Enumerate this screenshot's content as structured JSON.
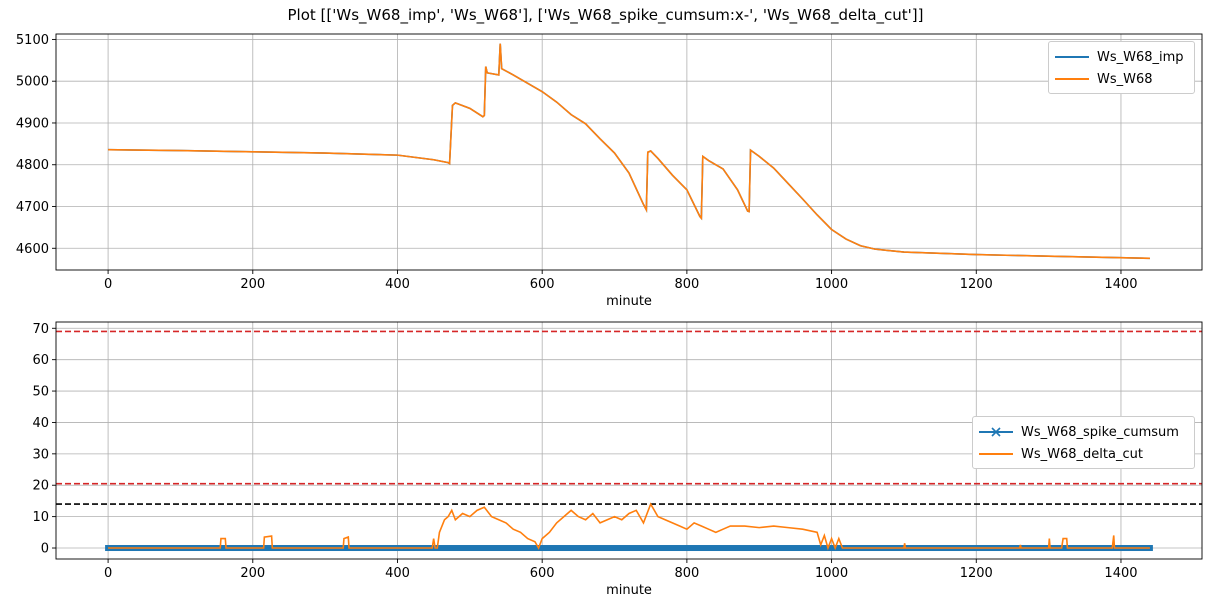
{
  "figure": {
    "title": "Plot [['Ws_W68_imp', 'Ws_W68'], ['Ws_W68_spike_cumsum:x-', 'Ws_W68_delta_cut']]"
  },
  "colors": {
    "blue": "#1f77b4",
    "orange": "#ff7f0e",
    "red_dashed": "#d62728",
    "black_dashed": "#000000",
    "grid": "#b0b0b0"
  },
  "chart_data": [
    {
      "type": "line",
      "xlabel": "minute",
      "ylabel": "",
      "xlim": [
        -72,
        1512
      ],
      "ylim": [
        4548,
        5113
      ],
      "xticks": [
        0,
        200,
        400,
        600,
        800,
        1000,
        1200,
        1400
      ],
      "yticks": [
        4600,
        4700,
        4800,
        4900,
        5000,
        5100
      ],
      "grid": true,
      "legend": "top-right",
      "series": [
        {
          "name": "Ws_W68_imp",
          "color": "blue",
          "style": "solid",
          "points": [
            [
              0,
              4836
            ],
            [
              100,
              4834
            ],
            [
              200,
              4831
            ],
            [
              300,
              4828
            ],
            [
              400,
              4823
            ],
            [
              450,
              4812
            ],
            [
              470,
              4805
            ],
            [
              472,
              4803
            ],
            [
              476,
              4942
            ],
            [
              480,
              4948
            ],
            [
              500,
              4935
            ],
            [
              518,
              4915
            ],
            [
              520,
              4918
            ],
            [
              522,
              5035
            ],
            [
              524,
              5020
            ],
            [
              540,
              5015
            ],
            [
              542,
              5090
            ],
            [
              544,
              5030
            ],
            [
              560,
              5015
            ],
            [
              580,
              4995
            ],
            [
              600,
              4975
            ],
            [
              620,
              4950
            ],
            [
              640,
              4920
            ],
            [
              660,
              4898
            ],
            [
              680,
              4862
            ],
            [
              700,
              4828
            ],
            [
              720,
              4780
            ],
            [
              740,
              4705
            ],
            [
              744,
              4692
            ],
            [
              746,
              4830
            ],
            [
              750,
              4833
            ],
            [
              760,
              4815
            ],
            [
              780,
              4775
            ],
            [
              800,
              4740
            ],
            [
              818,
              4676
            ],
            [
              820,
              4672
            ],
            [
              822,
              4820
            ],
            [
              830,
              4810
            ],
            [
              850,
              4790
            ],
            [
              870,
              4740
            ],
            [
              884,
              4689
            ],
            [
              886,
              4688
            ],
            [
              888,
              4835
            ],
            [
              900,
              4820
            ],
            [
              920,
              4792
            ],
            [
              940,
              4755
            ],
            [
              960,
              4718
            ],
            [
              980,
              4680
            ],
            [
              1000,
              4645
            ],
            [
              1020,
              4622
            ],
            [
              1040,
              4606
            ],
            [
              1060,
              4598
            ],
            [
              1100,
              4591
            ],
            [
              1200,
              4585
            ],
            [
              1300,
              4581
            ],
            [
              1440,
              4576
            ]
          ]
        },
        {
          "name": "Ws_W68",
          "color": "orange",
          "style": "solid",
          "points": [
            [
              0,
              4836
            ],
            [
              100,
              4834
            ],
            [
              200,
              4831
            ],
            [
              300,
              4828
            ],
            [
              400,
              4823
            ],
            [
              450,
              4812
            ],
            [
              470,
              4805
            ],
            [
              472,
              4803
            ],
            [
              476,
              4942
            ],
            [
              480,
              4948
            ],
            [
              500,
              4935
            ],
            [
              518,
              4915
            ],
            [
              520,
              4918
            ],
            [
              522,
              5035
            ],
            [
              524,
              5020
            ],
            [
              540,
              5015
            ],
            [
              542,
              5090
            ],
            [
              544,
              5030
            ],
            [
              560,
              5015
            ],
            [
              580,
              4995
            ],
            [
              600,
              4975
            ],
            [
              620,
              4950
            ],
            [
              640,
              4920
            ],
            [
              660,
              4898
            ],
            [
              680,
              4862
            ],
            [
              700,
              4828
            ],
            [
              720,
              4780
            ],
            [
              740,
              4705
            ],
            [
              744,
              4692
            ],
            [
              746,
              4830
            ],
            [
              750,
              4833
            ],
            [
              760,
              4815
            ],
            [
              780,
              4775
            ],
            [
              800,
              4740
            ],
            [
              818,
              4676
            ],
            [
              820,
              4672
            ],
            [
              822,
              4820
            ],
            [
              830,
              4810
            ],
            [
              850,
              4790
            ],
            [
              870,
              4740
            ],
            [
              884,
              4689
            ],
            [
              886,
              4688
            ],
            [
              888,
              4835
            ],
            [
              900,
              4820
            ],
            [
              920,
              4792
            ],
            [
              940,
              4755
            ],
            [
              960,
              4718
            ],
            [
              980,
              4680
            ],
            [
              1000,
              4645
            ],
            [
              1020,
              4622
            ],
            [
              1040,
              4606
            ],
            [
              1060,
              4598
            ],
            [
              1100,
              4591
            ],
            [
              1200,
              4585
            ],
            [
              1300,
              4581
            ],
            [
              1440,
              4576
            ]
          ]
        }
      ]
    },
    {
      "type": "line",
      "xlabel": "minute",
      "ylabel": "",
      "xlim": [
        -72,
        1512
      ],
      "ylim": [
        -3.5,
        72
      ],
      "xticks": [
        0,
        200,
        400,
        600,
        800,
        1000,
        1200,
        1400
      ],
      "yticks": [
        0,
        10,
        20,
        30,
        40,
        50,
        60,
        70
      ],
      "grid": true,
      "legend": "center-right",
      "hlines": [
        {
          "y": 69,
          "color": "red_dashed",
          "style": "dashed"
        },
        {
          "y": 20.5,
          "color": "red_dashed",
          "style": "dashed"
        },
        {
          "y": 14,
          "color": "black_dashed",
          "style": "dashed"
        }
      ],
      "series": [
        {
          "name": "Ws_W68_spike_cumsum",
          "color": "blue",
          "style": "x-",
          "x_range": [
            0,
            1440
          ],
          "values_note": "",
          "value_min": 0,
          "value_max": 0
        },
        {
          "name": "Ws_W68_delta_cut",
          "color": "orange",
          "style": "solid",
          "points": [
            [
              0,
              0
            ],
            [
              155,
              0
            ],
            [
              156,
              3
            ],
            [
              162,
              3
            ],
            [
              163,
              0
            ],
            [
              215,
              0
            ],
            [
              216,
              3.5
            ],
            [
              226,
              3.8
            ],
            [
              227,
              0
            ],
            [
              325,
              0
            ],
            [
              326,
              3
            ],
            [
              332,
              3.5
            ],
            [
              333,
              0
            ],
            [
              448,
              0
            ],
            [
              450,
              3
            ],
            [
              452,
              0
            ],
            [
              455,
              0
            ],
            [
              458,
              5
            ],
            [
              465,
              9
            ],
            [
              470,
              10
            ],
            [
              475,
              12
            ],
            [
              480,
              9
            ],
            [
              490,
              11
            ],
            [
              500,
              10
            ],
            [
              510,
              12
            ],
            [
              520,
              13
            ],
            [
              530,
              10
            ],
            [
              540,
              9
            ],
            [
              550,
              8
            ],
            [
              560,
              6
            ],
            [
              570,
              5
            ],
            [
              580,
              3
            ],
            [
              590,
              2
            ],
            [
              595,
              0
            ],
            [
              600,
              3
            ],
            [
              610,
              5
            ],
            [
              620,
              8
            ],
            [
              630,
              10
            ],
            [
              640,
              12
            ],
            [
              650,
              10
            ],
            [
              660,
              9
            ],
            [
              670,
              11
            ],
            [
              680,
              8
            ],
            [
              690,
              9
            ],
            [
              700,
              10
            ],
            [
              710,
              9
            ],
            [
              720,
              11
            ],
            [
              730,
              12
            ],
            [
              740,
              8
            ],
            [
              750,
              14
            ],
            [
              760,
              10
            ],
            [
              770,
              9
            ],
            [
              780,
              8
            ],
            [
              790,
              7
            ],
            [
              800,
              6
            ],
            [
              810,
              8
            ],
            [
              820,
              7
            ],
            [
              830,
              6
            ],
            [
              840,
              5
            ],
            [
              850,
              6
            ],
            [
              860,
              7
            ],
            [
              880,
              7
            ],
            [
              900,
              6.5
            ],
            [
              920,
              7
            ],
            [
              940,
              6.5
            ],
            [
              960,
              6
            ],
            [
              980,
              5
            ],
            [
              985,
              1
            ],
            [
              990,
              4
            ],
            [
              995,
              0
            ],
            [
              1000,
              3
            ],
            [
              1005,
              0
            ],
            [
              1010,
              3
            ],
            [
              1015,
              0
            ],
            [
              1100,
              0
            ],
            [
              1101,
              1.5
            ],
            [
              1102,
              0
            ],
            [
              1260,
              0
            ],
            [
              1261,
              1
            ],
            [
              1262,
              0
            ],
            [
              1300,
              0
            ],
            [
              1301,
              3
            ],
            [
              1302,
              0
            ],
            [
              1318,
              0
            ],
            [
              1320,
              3
            ],
            [
              1325,
              3
            ],
            [
              1326,
              0
            ],
            [
              1388,
              0
            ],
            [
              1390,
              4
            ],
            [
              1391,
              0
            ],
            [
              1440,
              0
            ]
          ]
        }
      ]
    }
  ]
}
